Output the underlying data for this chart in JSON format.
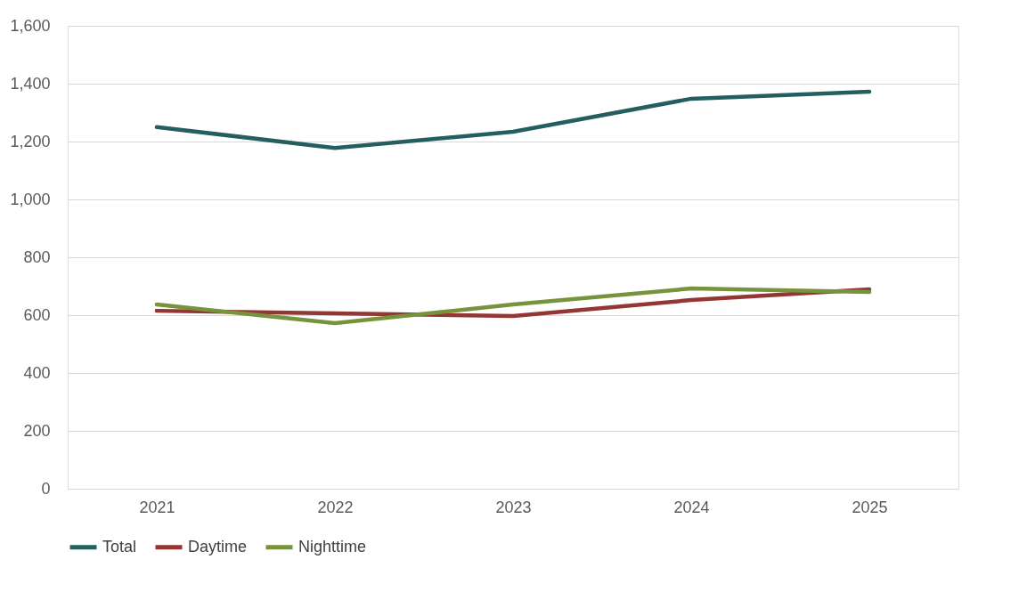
{
  "chart_data": {
    "type": "line",
    "categories": [
      "2021",
      "2022",
      "2023",
      "2024",
      "2025"
    ],
    "series": [
      {
        "name": "Total",
        "color": "#255e5e",
        "values": [
          1250,
          1178,
          1234,
          1348,
          1372
        ]
      },
      {
        "name": "Daytime",
        "color": "#943634",
        "values": [
          615,
          606,
          597,
          652,
          689
        ]
      },
      {
        "name": "Nighttime",
        "color": "#77933c",
        "values": [
          637,
          572,
          637,
          692,
          680
        ]
      }
    ],
    "ylim": [
      0,
      1600
    ],
    "yticks": [
      0,
      200,
      400,
      600,
      800,
      {
        "value": 1000,
        "label": "1,000"
      },
      {
        "value": 1200,
        "label": "1,200"
      },
      {
        "value": 1400,
        "label": "1,400"
      },
      {
        "value": 1600,
        "label": "1,600"
      }
    ],
    "grid": "y",
    "legend": "bottom",
    "marker": "none",
    "line_style": "solid"
  }
}
